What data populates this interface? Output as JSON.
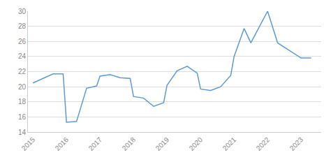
{
  "chart_data": {
    "type": "line",
    "x": [
      2015.0,
      2015.3,
      2015.6,
      2015.9,
      2016.0,
      2016.3,
      2016.6,
      2016.9,
      2017.0,
      2017.3,
      2017.6,
      2017.9,
      2018.0,
      2018.3,
      2018.6,
      2018.9,
      2019.0,
      2019.3,
      2019.6,
      2019.9,
      2020.0,
      2020.3,
      2020.6,
      2020.9,
      2021.0,
      2021.3,
      2021.5,
      2022.0,
      2022.3,
      2023.0,
      2023.3
    ],
    "values": [
      20.5,
      21.1,
      21.7,
      21.7,
      15.3,
      15.4,
      19.8,
      20.1,
      21.4,
      21.6,
      21.2,
      21.1,
      18.7,
      18.5,
      17.4,
      17.9,
      20.2,
      22.1,
      22.7,
      21.8,
      19.7,
      19.5,
      20.0,
      21.5,
      24.0,
      27.7,
      25.8,
      30.0,
      25.8,
      23.8,
      23.8
    ],
    "color": "#5b9bd5",
    "xlim": [
      2014.85,
      2023.6
    ],
    "xticks": [
      2015,
      2016,
      2017,
      2018,
      2019,
      2020,
      2021,
      2022,
      2023
    ],
    "ylim": [
      14,
      30
    ],
    "yticks": [
      14,
      16,
      18,
      20,
      22,
      24,
      26,
      28,
      30
    ],
    "grid": "y"
  }
}
